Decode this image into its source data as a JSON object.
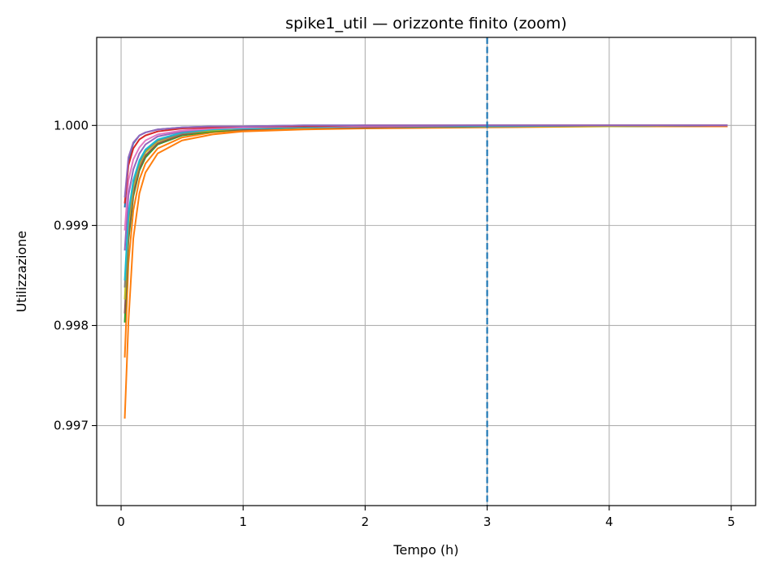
{
  "chart_data": {
    "type": "line",
    "title": "spike1_util — orizzonte finito (zoom)",
    "xlabel": "Tempo (h)",
    "ylabel": "Utilizzazione",
    "xlim": [
      -0.2,
      5.2
    ],
    "ylim": [
      0.9962,
      1.00088
    ],
    "x_ticks": [
      0,
      1,
      2,
      3,
      4,
      5
    ],
    "x_tick_labels": [
      "0",
      "1",
      "2",
      "3",
      "4",
      "5"
    ],
    "y_ticks": [
      0.997,
      0.998,
      0.999,
      1.0
    ],
    "y_tick_labels": [
      "0.997",
      "0.998",
      "0.999",
      "1.000"
    ],
    "grid": true,
    "vertical_line": {
      "x": 3,
      "style": "dashed",
      "color": "#1f77b4"
    },
    "series": [
      {
        "color": "#ff7f0e",
        "x": [
          0.03,
          0.06,
          0.1,
          0.15,
          0.2,
          0.3,
          0.5,
          0.75,
          1,
          1.5,
          2,
          3,
          4,
          4.97
        ],
        "y": [
          0.99707,
          0.99803,
          0.99887,
          0.99932,
          0.99953,
          0.99972,
          0.99985,
          0.99991,
          0.99994,
          0.99996,
          0.99997,
          0.99998,
          0.99999,
          0.99999
        ]
      },
      {
        "color": "#ff7f0e",
        "x": [
          0.03,
          0.06,
          0.1,
          0.15,
          0.2,
          0.3,
          0.5,
          0.75,
          1,
          1.5,
          2,
          3,
          4,
          4.97
        ],
        "y": [
          0.99768,
          0.99862,
          0.99915,
          0.99946,
          0.99962,
          0.99977,
          0.99988,
          0.99993,
          0.99995,
          0.99997,
          0.99998,
          0.99999,
          0.99999,
          0.99999
        ]
      },
      {
        "color": "#2ca02c",
        "x": [
          0.03,
          0.06,
          0.1,
          0.15,
          0.2,
          0.3,
          0.5,
          0.75,
          1,
          1.5,
          2,
          3,
          4,
          4.97
        ],
        "y": [
          0.99803,
          0.99885,
          0.99929,
          0.99955,
          0.99968,
          0.99981,
          0.9999,
          0.99994,
          0.99996,
          0.99998,
          0.99998,
          0.99999,
          0.99999,
          1.0
        ]
      },
      {
        "color": "#8c564b",
        "x": [
          0.03,
          0.06,
          0.1,
          0.15,
          0.2,
          0.3,
          0.5,
          0.75,
          1,
          1.5,
          2,
          3,
          4,
          4.97
        ],
        "y": [
          0.99812,
          0.9989,
          0.99932,
          0.99957,
          0.9997,
          0.99982,
          0.99991,
          0.99995,
          0.99996,
          0.99998,
          0.99998,
          0.99999,
          0.99999,
          1.0
        ]
      },
      {
        "color": "#bcbd22",
        "x": [
          0.03,
          0.06,
          0.1,
          0.15,
          0.2,
          0.3,
          0.5,
          0.75,
          1,
          1.5,
          2,
          3,
          4,
          4.97
        ],
        "y": [
          0.99826,
          0.999,
          0.99938,
          0.99961,
          0.99973,
          0.99984,
          0.99992,
          0.99995,
          0.99997,
          0.99998,
          0.99999,
          0.99999,
          0.99999,
          1.0
        ]
      },
      {
        "color": "#7f7f7f",
        "x": [
          0.03,
          0.06,
          0.1,
          0.15,
          0.2,
          0.3,
          0.5,
          0.75,
          1,
          1.5,
          2,
          3,
          4,
          4.97
        ],
        "y": [
          0.99838,
          0.99907,
          0.99942,
          0.99963,
          0.99975,
          0.99985,
          0.99992,
          0.99996,
          0.99997,
          0.99998,
          0.99999,
          0.99999,
          1.0,
          1.0
        ]
      },
      {
        "color": "#17becf",
        "x": [
          0.03,
          0.06,
          0.1,
          0.15,
          0.2,
          0.3,
          0.5,
          0.75,
          1,
          1.5,
          2,
          3,
          4,
          4.97
        ],
        "y": [
          0.99845,
          0.99912,
          0.99945,
          0.99965,
          0.99976,
          0.99986,
          0.99993,
          0.99996,
          0.99997,
          0.99998,
          0.99999,
          0.99999,
          1.0,
          1.0
        ]
      },
      {
        "color": "#9467bd",
        "x": [
          0.03,
          0.06,
          0.1,
          0.15,
          0.2,
          0.3,
          0.5,
          0.75,
          1,
          1.5,
          2,
          3,
          4,
          4.97
        ],
        "y": [
          0.99875,
          0.9993,
          0.99956,
          0.99972,
          0.99981,
          0.99989,
          0.99994,
          0.99997,
          0.99998,
          0.99999,
          0.99999,
          1.0,
          1.0,
          1.0
        ]
      },
      {
        "color": "#e377c2",
        "x": [
          0.03,
          0.06,
          0.1,
          0.15,
          0.2,
          0.3,
          0.5,
          0.75,
          1,
          1.5,
          2,
          3,
          4,
          4.97
        ],
        "y": [
          0.99895,
          0.99945,
          0.99966,
          0.99978,
          0.99985,
          0.99991,
          0.99995,
          0.99997,
          0.99998,
          0.99999,
          0.99999,
          1.0,
          1.0,
          1.0
        ]
      },
      {
        "color": "#1f77b4",
        "x": [
          0.03,
          0.06,
          0.1,
          0.15,
          0.2,
          0.3,
          0.5,
          0.75,
          1,
          1.5,
          2,
          3,
          4,
          4.97
        ],
        "y": [
          0.99918,
          0.99965,
          0.99982,
          0.9999,
          0.99993,
          0.99996,
          0.99998,
          0.99999,
          0.99999,
          1.0,
          1.0,
          1.0,
          1.0,
          1.0
        ]
      },
      {
        "color": "#d62728",
        "x": [
          0.03,
          0.06,
          0.1,
          0.15,
          0.2,
          0.3,
          0.5,
          0.75,
          1,
          1.5,
          2,
          3,
          4,
          4.97
        ],
        "y": [
          0.99922,
          0.9996,
          0.99977,
          0.99986,
          0.9999,
          0.99994,
          0.99997,
          0.99998,
          0.99999,
          0.99999,
          1.0,
          1.0,
          1.0,
          1.0
        ]
      },
      {
        "color": "#9467bd",
        "x": [
          0.03,
          0.06,
          0.1,
          0.15,
          0.2,
          0.3,
          0.5,
          0.75,
          1,
          1.5,
          2,
          3,
          4,
          4.97
        ],
        "y": [
          0.99928,
          0.99968,
          0.99983,
          0.9999,
          0.99993,
          0.99996,
          0.99998,
          0.99999,
          0.99999,
          1.0,
          1.0,
          1.0,
          1.0,
          1.0
        ]
      }
    ]
  }
}
